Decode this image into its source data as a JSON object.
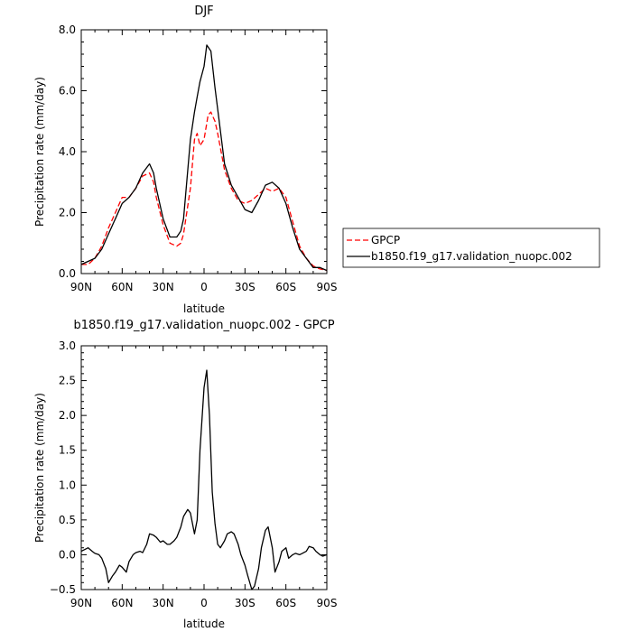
{
  "chart_data": [
    {
      "type": "line",
      "title": "DJF",
      "xlabel": "latitude",
      "ylabel": "Precipitation rate (mm/day)",
      "xlim": [
        90,
        -90
      ],
      "ylim": [
        0,
        8
      ],
      "x_ticks": [
        90,
        60,
        30,
        0,
        -30,
        -60,
        -90
      ],
      "x_tick_labels": [
        "90N",
        "60N",
        "30N",
        "0",
        "30S",
        "60S",
        "90S"
      ],
      "y_ticks": [
        0,
        2,
        4,
        6,
        8
      ],
      "y_tick_labels": [
        "0.0",
        "2.0",
        "4.0",
        "6.0",
        "8.0"
      ],
      "grid": false,
      "legend_position": "right",
      "series": [
        {
          "name": "GPCP",
          "color": "#ff0000",
          "dash": "dashed",
          "x": [
            90,
            85,
            80,
            75,
            70,
            65,
            60,
            55,
            50,
            45,
            40,
            37,
            35,
            30,
            25,
            20,
            17,
            15,
            10,
            7,
            5,
            3,
            0,
            -3,
            -5,
            -8,
            -10,
            -15,
            -20,
            -25,
            -30,
            -35,
            -40,
            -45,
            -50,
            -55,
            -60,
            -65,
            -70,
            -75,
            -80,
            -85,
            -90
          ],
          "values": [
            0.3,
            0.3,
            0.5,
            0.9,
            1.5,
            2.0,
            2.5,
            2.5,
            2.8,
            3.2,
            3.3,
            3.0,
            2.5,
            1.6,
            1.0,
            0.9,
            1.0,
            1.3,
            2.8,
            4.4,
            4.6,
            4.2,
            4.4,
            5.2,
            5.3,
            5.0,
            4.6,
            3.4,
            2.8,
            2.4,
            2.3,
            2.4,
            2.6,
            2.8,
            2.7,
            2.8,
            2.5,
            1.7,
            0.9,
            0.5,
            0.25,
            0.15,
            0.1
          ]
        },
        {
          "name": "b1850.f19_g17.validation_nuopc.002",
          "color": "#000000",
          "dash": "solid",
          "x": [
            90,
            85,
            80,
            75,
            70,
            65,
            60,
            55,
            50,
            45,
            40,
            37,
            35,
            30,
            25,
            20,
            17,
            15,
            10,
            7,
            5,
            3,
            0,
            -2,
            -5,
            -8,
            -10,
            -15,
            -20,
            -25,
            -30,
            -35,
            -40,
            -45,
            -50,
            -55,
            -60,
            -65,
            -70,
            -75,
            -80,
            -85,
            -90
          ],
          "values": [
            0.3,
            0.4,
            0.5,
            0.8,
            1.3,
            1.8,
            2.3,
            2.5,
            2.8,
            3.3,
            3.6,
            3.3,
            2.8,
            1.8,
            1.2,
            1.2,
            1.4,
            1.8,
            4.4,
            5.3,
            5.8,
            6.3,
            6.8,
            7.5,
            7.3,
            6.1,
            5.4,
            3.6,
            2.9,
            2.5,
            2.1,
            2.0,
            2.4,
            2.9,
            3.0,
            2.8,
            2.3,
            1.5,
            0.8,
            0.5,
            0.2,
            0.2,
            0.1
          ]
        }
      ]
    },
    {
      "type": "line",
      "title": "b1850.f19_g17.validation_nuopc.002 - GPCP",
      "xlabel": "latitude",
      "ylabel": "Precipitation rate (mm/day)",
      "xlim": [
        90,
        -90
      ],
      "ylim": [
        -0.5,
        3.0
      ],
      "x_ticks": [
        90,
        60,
        30,
        0,
        -30,
        -60,
        -90
      ],
      "x_tick_labels": [
        "90N",
        "60N",
        "30N",
        "0",
        "30S",
        "60S",
        "90S"
      ],
      "y_ticks": [
        -0.5,
        0,
        0.5,
        1.0,
        1.5,
        2.0,
        2.5,
        3.0
      ],
      "y_tick_labels": [
        "−0.5",
        "0.0",
        "0.5",
        "1.0",
        "1.5",
        "2.0",
        "2.5",
        "3.0"
      ],
      "grid": false,
      "series": [
        {
          "color": "#000000",
          "dash": "solid",
          "x": [
            90,
            87,
            85,
            82,
            80,
            77,
            75,
            72,
            70,
            67,
            65,
            62,
            60,
            57,
            55,
            52,
            50,
            47,
            45,
            42,
            40,
            37,
            35,
            32,
            30,
            27,
            25,
            22,
            20,
            17,
            15,
            12,
            10,
            7,
            5,
            3,
            0,
            -2,
            -4,
            -6,
            -8,
            -10,
            -12,
            -15,
            -17,
            -20,
            -22,
            -25,
            -27,
            -30,
            -32,
            -35,
            -37,
            -40,
            -42,
            -45,
            -47,
            -50,
            -52,
            -55,
            -57,
            -60,
            -62,
            -65,
            -67,
            -70,
            -72,
            -75,
            -77,
            -80,
            -82,
            -85,
            -87,
            -90
          ],
          "values": [
            0.05,
            0.08,
            0.1,
            0.05,
            0.02,
            0.0,
            -0.05,
            -0.2,
            -0.4,
            -0.3,
            -0.25,
            -0.15,
            -0.18,
            -0.25,
            -0.1,
            0.0,
            0.03,
            0.05,
            0.03,
            0.15,
            0.3,
            0.28,
            0.25,
            0.18,
            0.2,
            0.15,
            0.15,
            0.2,
            0.25,
            0.4,
            0.55,
            0.65,
            0.6,
            0.3,
            0.5,
            1.5,
            2.4,
            2.65,
            2.0,
            0.9,
            0.45,
            0.15,
            0.1,
            0.2,
            0.3,
            0.33,
            0.3,
            0.15,
            0.0,
            -0.15,
            -0.3,
            -0.5,
            -0.45,
            -0.2,
            0.1,
            0.35,
            0.4,
            0.1,
            -0.25,
            -0.1,
            0.05,
            0.1,
            -0.05,
            0.0,
            0.02,
            0.0,
            0.02,
            0.05,
            0.12,
            0.1,
            0.05,
            0.0,
            -0.02,
            0.0
          ]
        }
      ]
    }
  ]
}
